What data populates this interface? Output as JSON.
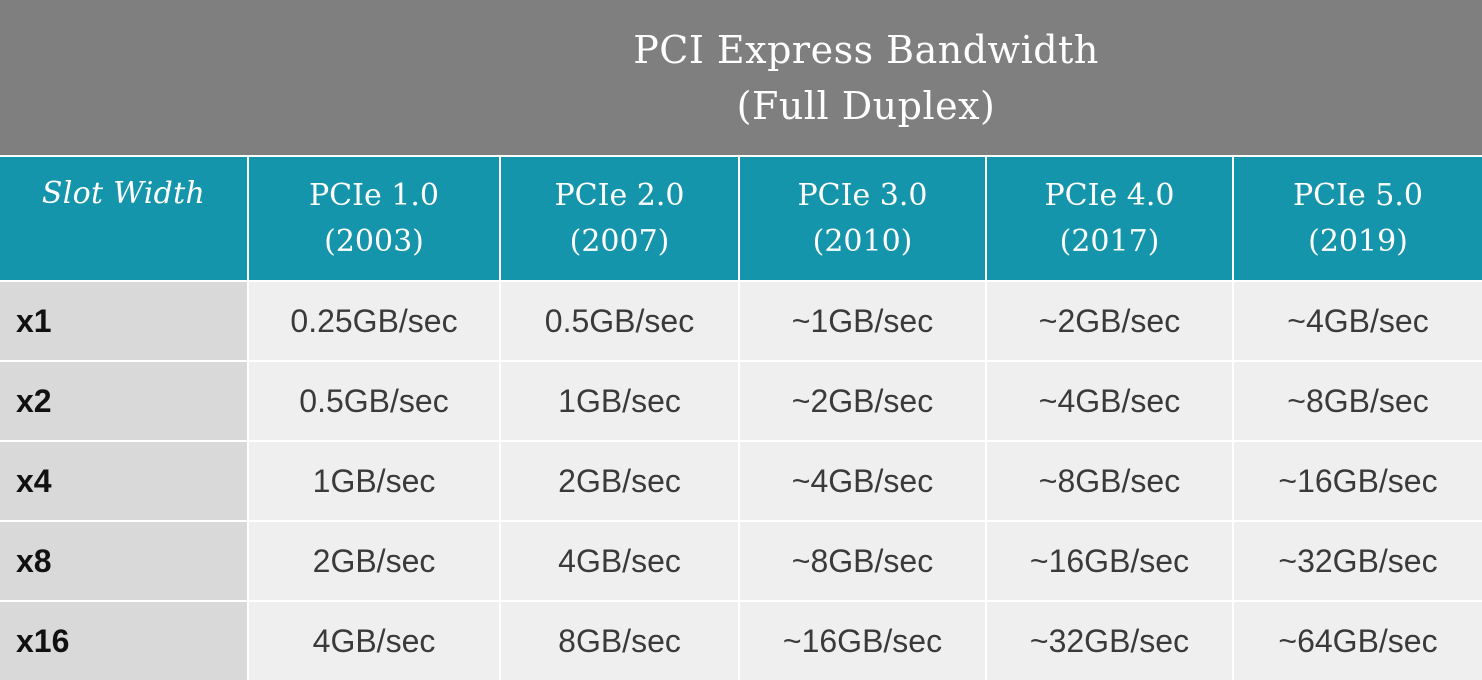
{
  "header": {
    "title_line1": "PCI Express Bandwidth",
    "title_line2": "(Full Duplex)"
  },
  "colors": {
    "title_band": "#7f7f7f",
    "header_row": "#1595ab",
    "row_label_bg": "#d9d9d9",
    "cell_bg": "#efefef"
  },
  "chart_data": {
    "type": "table",
    "title": "PCI Express Bandwidth (Full Duplex)",
    "row_header": "Slot Width",
    "columns": [
      {
        "name": "PCIe 1.0",
        "year": "(2003)"
      },
      {
        "name": "PCIe 2.0",
        "year": "(2007)"
      },
      {
        "name": "PCIe 3.0",
        "year": "(2010)"
      },
      {
        "name": "PCIe 4.0",
        "year": "(2017)"
      },
      {
        "name": "PCIe 5.0",
        "year": "(2019)"
      }
    ],
    "rows": [
      {
        "label": "x1",
        "values": [
          "0.25GB/sec",
          "0.5GB/sec",
          "~1GB/sec",
          "~2GB/sec",
          "~4GB/sec"
        ]
      },
      {
        "label": "x2",
        "values": [
          "0.5GB/sec",
          "1GB/sec",
          "~2GB/sec",
          "~4GB/sec",
          "~8GB/sec"
        ]
      },
      {
        "label": "x4",
        "values": [
          "1GB/sec",
          "2GB/sec",
          "~4GB/sec",
          "~8GB/sec",
          "~16GB/sec"
        ]
      },
      {
        "label": "x8",
        "values": [
          "2GB/sec",
          "4GB/sec",
          "~8GB/sec",
          "~16GB/sec",
          "~32GB/sec"
        ]
      },
      {
        "label": "x16",
        "values": [
          "4GB/sec",
          "8GB/sec",
          "~16GB/sec",
          "~32GB/sec",
          "~64GB/sec"
        ]
      }
    ]
  }
}
